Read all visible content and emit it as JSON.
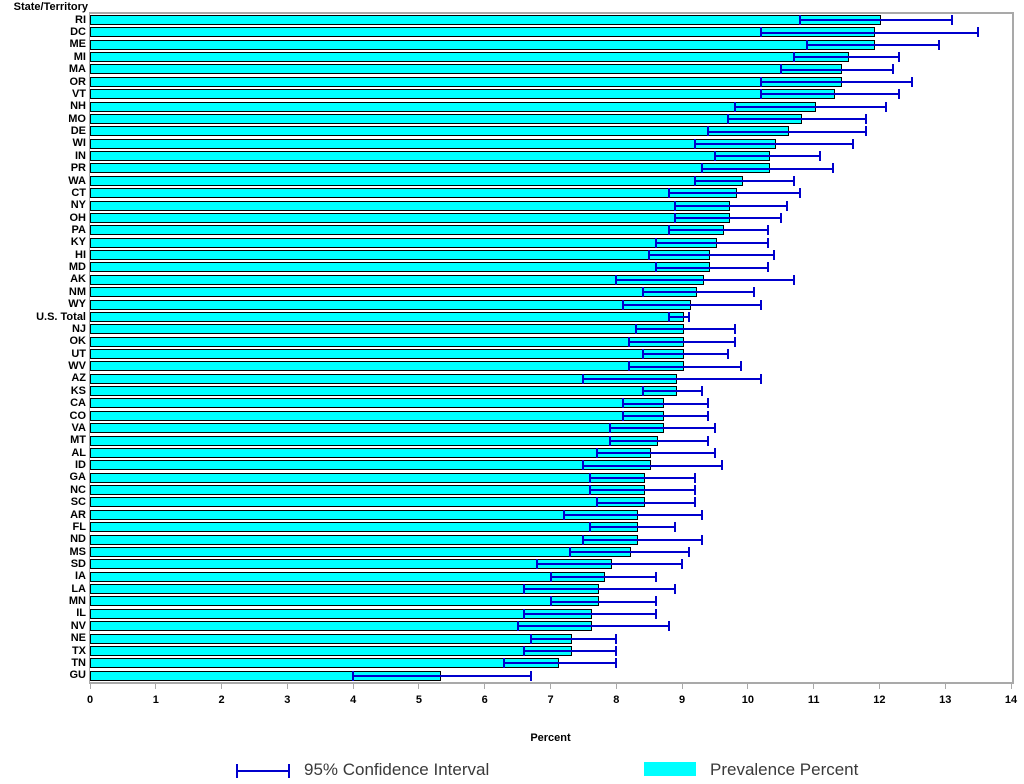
{
  "y_axis": {
    "title": "State/Territory"
  },
  "legend": {
    "ci_label": "95% Confidence Interval",
    "bar_label": "Prevalence Percent"
  },
  "colors": {
    "bar_fill": "#00FFFF",
    "bar_border": "#000000",
    "ci": "#0000CD",
    "frame": "#A9A9A9",
    "text": "#000000"
  },
  "chart_data": {
    "type": "bar",
    "orientation": "horizontal",
    "title": "",
    "xlabel": "Percent",
    "ylabel": "State/Territory",
    "xlim": [
      0,
      14
    ],
    "x_ticks": [
      0,
      1,
      2,
      3,
      4,
      5,
      6,
      7,
      8,
      9,
      10,
      11,
      12,
      13,
      14
    ],
    "grid": false,
    "legend_position": "bottom",
    "categories": [
      "RI",
      "DC",
      "ME",
      "MI",
      "MA",
      "OR",
      "VT",
      "NH",
      "MO",
      "DE",
      "WI",
      "IN",
      "PR",
      "WA",
      "CT",
      "NY",
      "OH",
      "PA",
      "KY",
      "HI",
      "MD",
      "AK",
      "NM",
      "WY",
      "U.S. Total",
      "NJ",
      "OK",
      "UT",
      "WV",
      "AZ",
      "KS",
      "CA",
      "CO",
      "VA",
      "MT",
      "AL",
      "ID",
      "GA",
      "NC",
      "SC",
      "AR",
      "FL",
      "ND",
      "MS",
      "SD",
      "IA",
      "LA",
      "MN",
      "IL",
      "NV",
      "NE",
      "TX",
      "TN",
      "GU"
    ],
    "series": [
      {
        "name": "Prevalence Percent",
        "values": [
          12.0,
          11.9,
          11.9,
          11.5,
          11.4,
          11.4,
          11.3,
          11.0,
          10.8,
          10.6,
          10.4,
          10.3,
          10.3,
          9.9,
          9.8,
          9.7,
          9.7,
          9.6,
          9.5,
          9.4,
          9.4,
          9.3,
          9.2,
          9.1,
          9.0,
          9.0,
          9.0,
          9.0,
          9.0,
          8.9,
          8.9,
          8.7,
          8.7,
          8.7,
          8.6,
          8.5,
          8.5,
          8.4,
          8.4,
          8.4,
          8.3,
          8.3,
          8.3,
          8.2,
          7.9,
          7.8,
          7.7,
          7.7,
          7.6,
          7.6,
          7.3,
          7.3,
          7.1,
          5.3
        ]
      },
      {
        "name": "95% CI lower bound",
        "values": [
          10.8,
          10.2,
          10.9,
          10.7,
          10.5,
          10.2,
          10.2,
          9.8,
          9.7,
          9.4,
          9.2,
          9.5,
          9.3,
          9.2,
          8.8,
          8.9,
          8.9,
          8.8,
          8.6,
          8.5,
          8.6,
          8.0,
          8.4,
          8.1,
          8.8,
          8.3,
          8.2,
          8.4,
          8.2,
          7.5,
          8.4,
          8.1,
          8.1,
          7.9,
          7.9,
          7.7,
          7.5,
          7.6,
          7.6,
          7.7,
          7.2,
          7.6,
          7.5,
          7.3,
          6.8,
          7.0,
          6.6,
          7.0,
          6.6,
          6.5,
          6.7,
          6.6,
          6.3,
          4.0
        ]
      },
      {
        "name": "95% CI upper bound",
        "values": [
          13.1,
          13.5,
          12.9,
          12.3,
          12.2,
          12.5,
          12.3,
          12.1,
          11.8,
          11.8,
          11.6,
          11.1,
          11.3,
          10.7,
          10.8,
          10.6,
          10.5,
          10.3,
          10.3,
          10.4,
          10.3,
          10.7,
          10.1,
          10.2,
          9.1,
          9.8,
          9.8,
          9.7,
          9.9,
          10.2,
          9.3,
          9.4,
          9.4,
          9.5,
          9.4,
          9.5,
          9.6,
          9.2,
          9.2,
          9.2,
          9.3,
          8.9,
          9.3,
          9.1,
          9.0,
          8.6,
          8.9,
          8.6,
          8.6,
          8.8,
          8.0,
          8.0,
          8.0,
          6.7
        ]
      }
    ]
  }
}
